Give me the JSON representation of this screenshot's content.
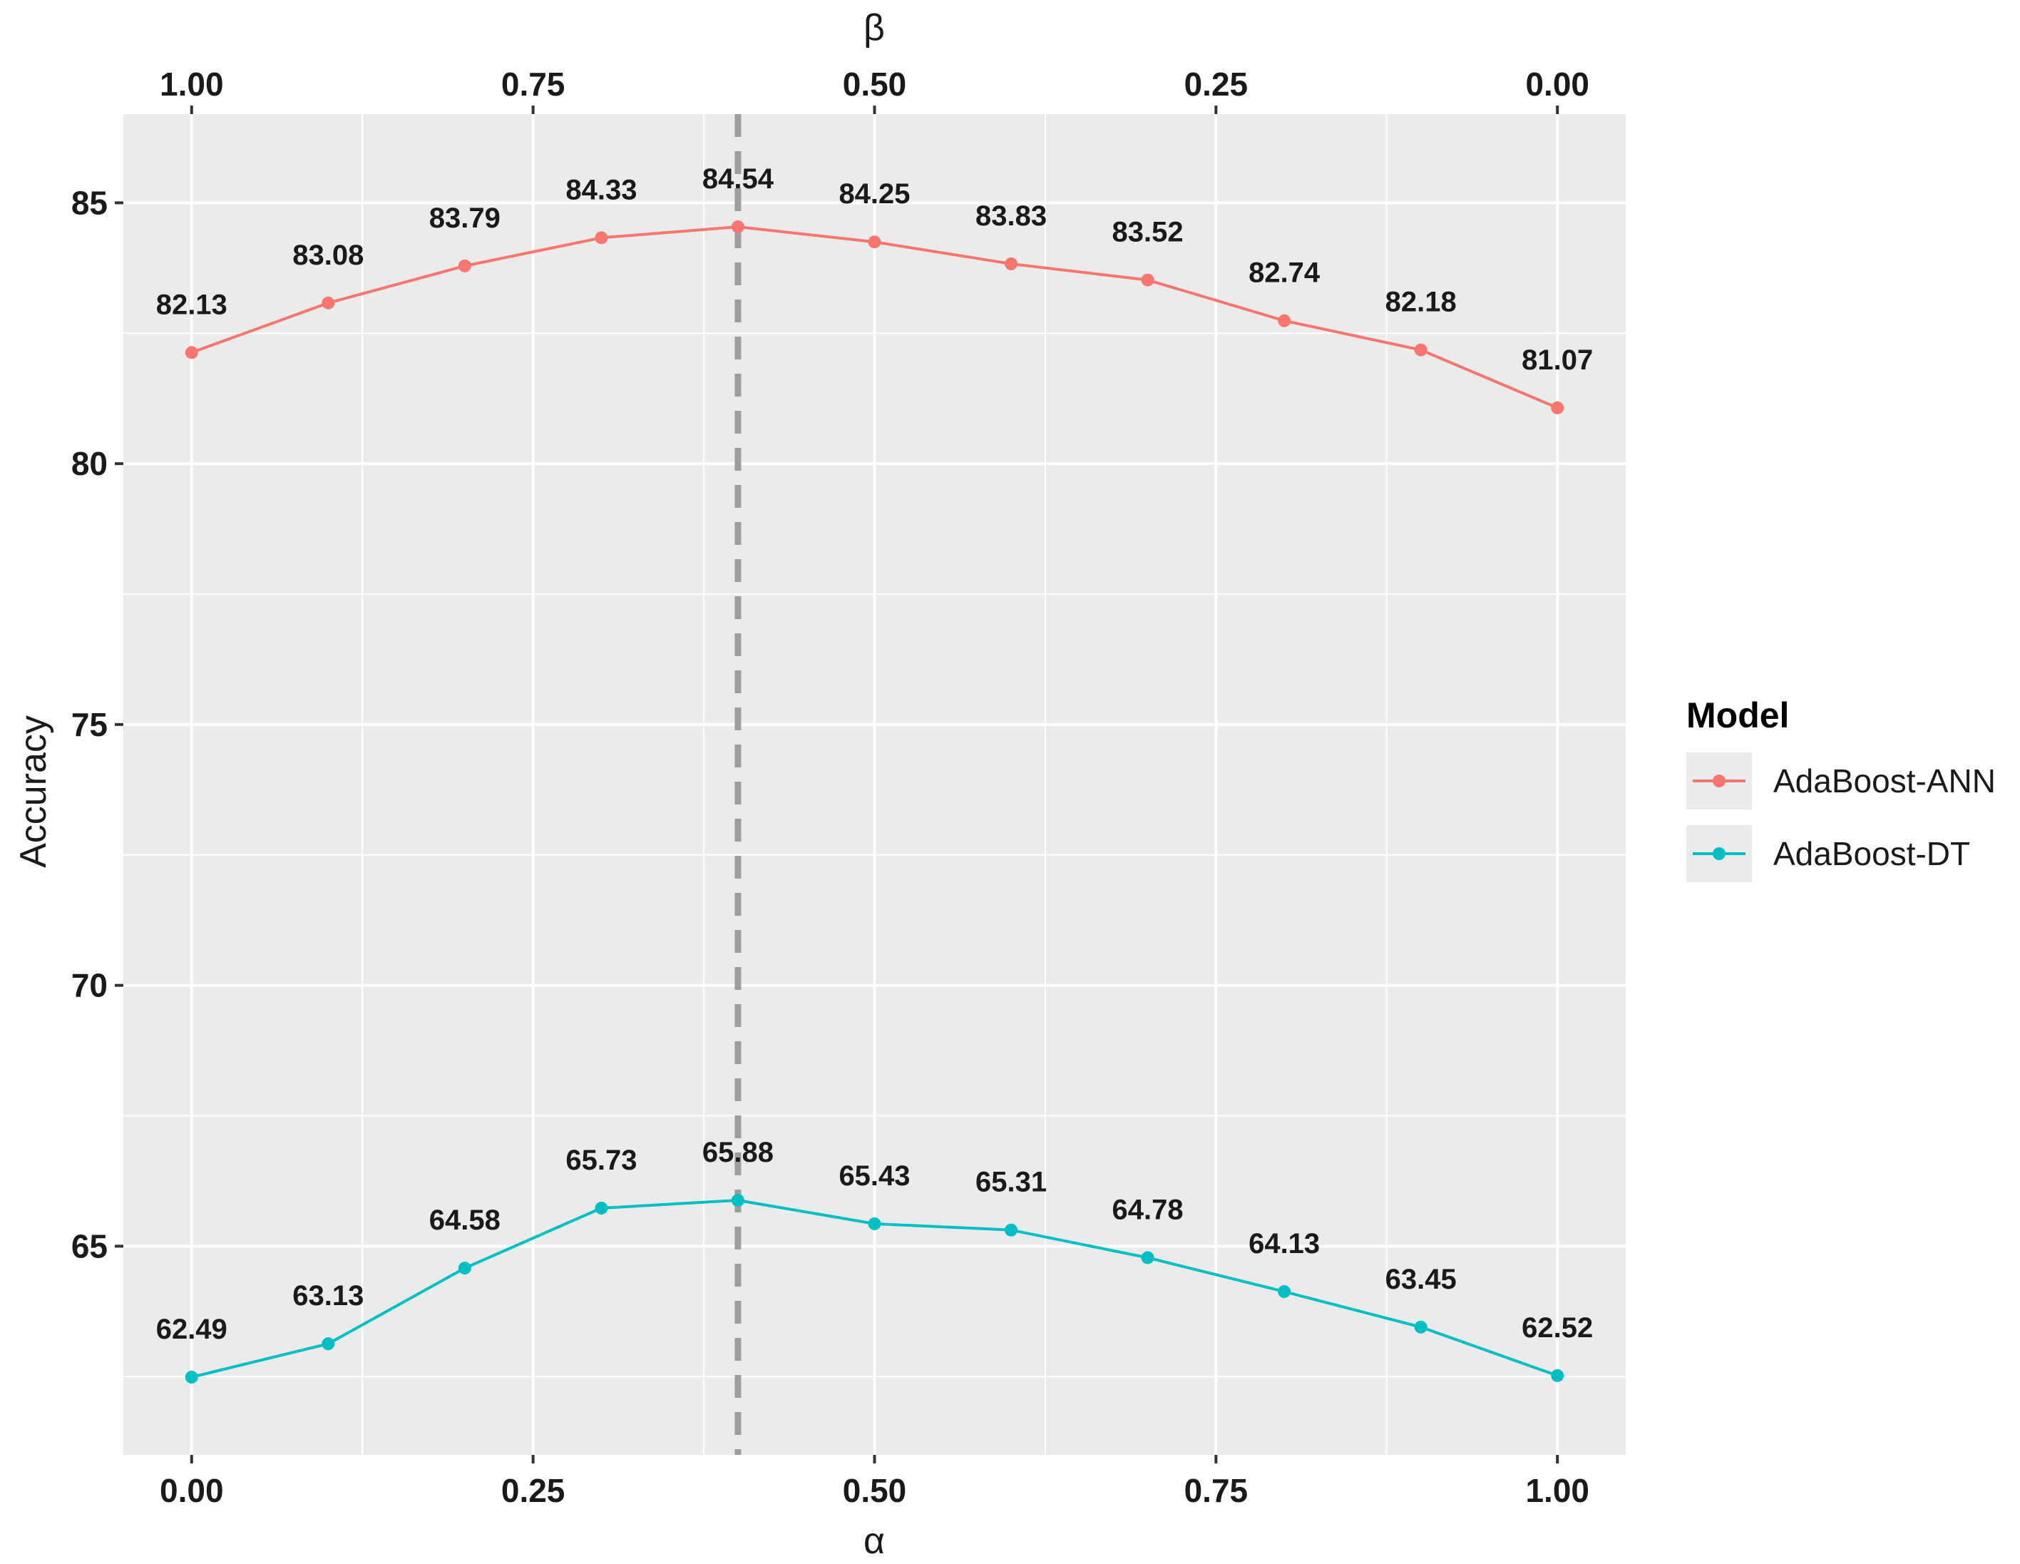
{
  "chart_data": {
    "type": "line",
    "title": "",
    "xlabel": "α",
    "ylabel": "Accuracy",
    "x2label": "β",
    "x": [
      0.0,
      0.1,
      0.2,
      0.3,
      0.4,
      0.5,
      0.6,
      0.7,
      0.8,
      0.9,
      1.0
    ],
    "xlim": [
      -0.05,
      1.05
    ],
    "ylim": [
      61.0,
      86.7
    ],
    "grid": true,
    "vline": 0.4,
    "x_ticks": [
      "0.00",
      "0.25",
      "0.50",
      "0.75",
      "1.00"
    ],
    "x_tick_values": [
      0.0,
      0.25,
      0.5,
      0.75,
      1.0
    ],
    "x2_ticks": [
      "1.00",
      "0.75",
      "0.50",
      "0.25",
      "0.00"
    ],
    "y_ticks": [
      "65",
      "70",
      "75",
      "80",
      "85"
    ],
    "y_tick_values": [
      65,
      70,
      75,
      80,
      85
    ],
    "legend_title": "Model",
    "legend_position": "right",
    "series": [
      {
        "name": "AdaBoost-ANN",
        "color": "#F8766D",
        "values": [
          82.13,
          83.08,
          83.79,
          84.33,
          84.54,
          84.25,
          83.83,
          83.52,
          82.74,
          82.18,
          81.07
        ],
        "labels": [
          "82.13",
          "83.08",
          "83.79",
          "84.33",
          "84.54",
          "84.25",
          "83.83",
          "83.52",
          "82.74",
          "82.18",
          "81.07"
        ]
      },
      {
        "name": "AdaBoost-DT",
        "color": "#00BFC4",
        "values": [
          62.49,
          63.13,
          64.58,
          65.73,
          65.88,
          65.43,
          65.31,
          64.78,
          64.13,
          63.45,
          62.52
        ],
        "labels": [
          "62.49",
          "63.13",
          "64.58",
          "65.73",
          "65.88",
          "65.43",
          "65.31",
          "64.78",
          "64.13",
          "63.45",
          "62.52"
        ]
      }
    ]
  }
}
